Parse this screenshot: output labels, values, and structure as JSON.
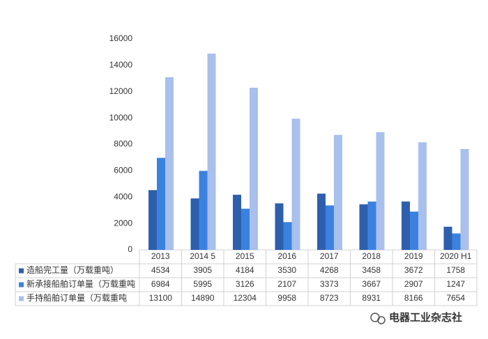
{
  "chart_data": {
    "type": "bar",
    "categories": [
      "2013",
      "2014 5",
      "2015",
      "2016",
      "2017",
      "2018",
      "2019",
      "2020 H1"
    ],
    "series": [
      {
        "name": "造船完工量（万载重吨）",
        "color": "#2e5fad",
        "values": [
          4534,
          3905,
          4184,
          3530,
          4268,
          3458,
          3672,
          1758
        ]
      },
      {
        "name": "新承接船舶订单量（万载重吨",
        "color": "#3b82e0",
        "values": [
          6984,
          5995,
          3126,
          2107,
          3373,
          3667,
          2907,
          1247
        ]
      },
      {
        "name": "手持船舶订单量（万载重吨",
        "color": "#a9c0ec",
        "values": [
          13100,
          14890,
          12304,
          9958,
          8723,
          8931,
          8166,
          7654
        ]
      }
    ],
    "ylim": [
      0,
      16000
    ],
    "yticks": [
      0,
      2000,
      4000,
      6000,
      8000,
      10000,
      12000,
      14000,
      16000
    ],
    "grid": false
  },
  "watermark": "电器工业杂志社"
}
